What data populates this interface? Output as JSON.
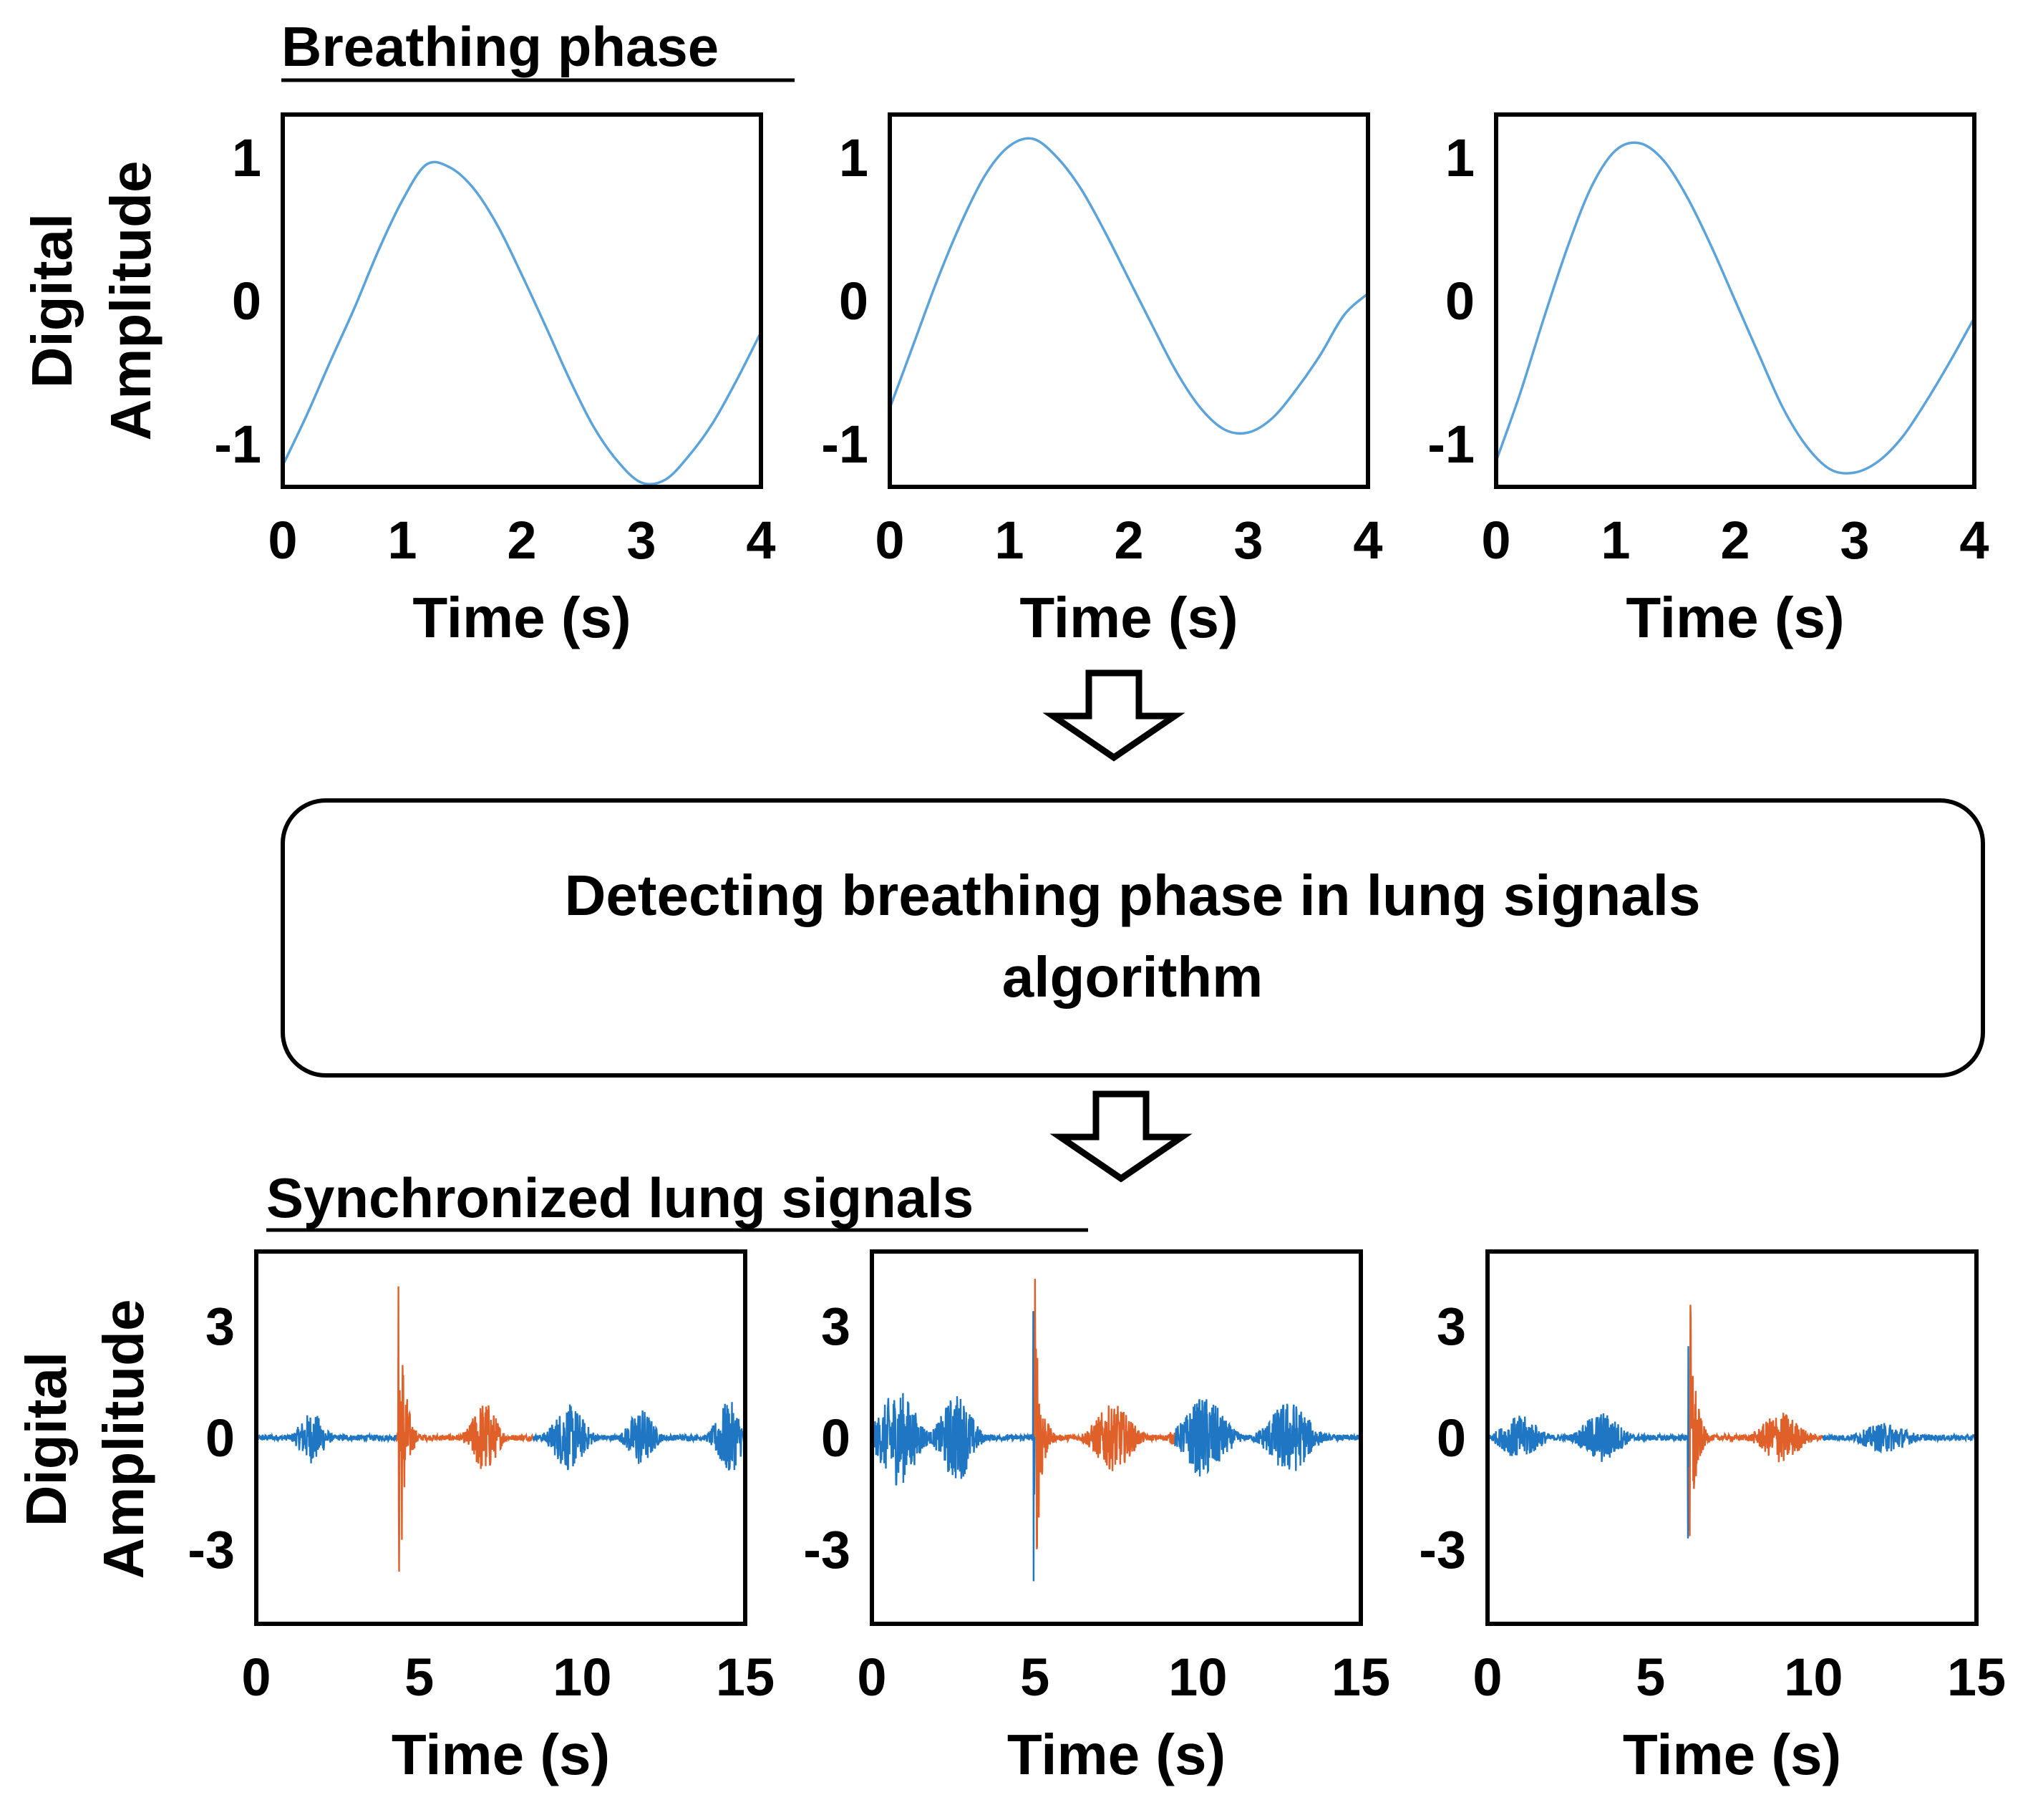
{
  "breathing_section": {
    "title": "Breathing phase"
  },
  "sync_section": {
    "title": "Synchronized lung signals"
  },
  "process_box": {
    "line1": "Detecting breathing phase in lung signals",
    "line2": "algorithm"
  },
  "y_axis_label": {
    "line1": "Digital",
    "line2": "Amplitude"
  },
  "x_axis_label": "Time (s)",
  "colors": {
    "breathing_line": "#5ba3d9",
    "lung_blue": "#1f77c4",
    "lung_orange": "#e0602a",
    "frame": "#000000"
  },
  "chart_data": [
    {
      "type": "line",
      "panel": "breathing-1",
      "ylim": [
        -1.3,
        1.3
      ],
      "xlim": [
        0,
        4
      ],
      "xticks": [
        "0",
        "1",
        "2",
        "3",
        "4"
      ],
      "yticks": [
        "1",
        "0",
        "-1"
      ],
      "x": [
        0,
        0.2,
        0.4,
        0.6,
        0.8,
        1.0,
        1.2,
        1.4,
        1.6,
        1.8,
        2.0,
        2.2,
        2.4,
        2.6,
        2.8,
        3.0,
        3.2,
        3.4,
        3.6,
        3.8,
        4.0
      ],
      "y": [
        -1.15,
        -0.8,
        -0.42,
        -0.05,
        0.35,
        0.7,
        0.95,
        0.93,
        0.78,
        0.52,
        0.18,
        -0.18,
        -0.55,
        -0.88,
        -1.12,
        -1.27,
        -1.25,
        -1.08,
        -0.85,
        -0.55,
        -0.22
      ]
    },
    {
      "type": "line",
      "panel": "breathing-2",
      "ylim": [
        -1.3,
        1.3
      ],
      "xlim": [
        0,
        4
      ],
      "xticks": [
        "0",
        "1",
        "2",
        "3",
        "4"
      ],
      "yticks": [
        "1",
        "0",
        "-1"
      ],
      "x": [
        0,
        0.2,
        0.4,
        0.6,
        0.8,
        1.0,
        1.2,
        1.4,
        1.6,
        1.8,
        2.0,
        2.2,
        2.4,
        2.6,
        2.8,
        3.0,
        3.2,
        3.4,
        3.6,
        3.8,
        4.0
      ],
      "y": [
        -0.75,
        -0.3,
        0.15,
        0.55,
        0.88,
        1.08,
        1.13,
        1.0,
        0.78,
        0.48,
        0.15,
        -0.18,
        -0.5,
        -0.75,
        -0.9,
        -0.92,
        -0.82,
        -0.62,
        -0.38,
        -0.1,
        0.05
      ]
    },
    {
      "type": "line",
      "panel": "breathing-3",
      "ylim": [
        -1.3,
        1.3
      ],
      "xlim": [
        0,
        4
      ],
      "xticks": [
        "0",
        "1",
        "2",
        "3",
        "4"
      ],
      "yticks": [
        "1",
        "0",
        "-1"
      ],
      "x": [
        0,
        0.2,
        0.4,
        0.6,
        0.8,
        1.0,
        1.2,
        1.4,
        1.6,
        1.8,
        2.0,
        2.2,
        2.4,
        2.6,
        2.8,
        3.0,
        3.2,
        3.4,
        3.6,
        3.8,
        4.0
      ],
      "y": [
        -1.12,
        -0.65,
        -0.12,
        0.38,
        0.8,
        1.05,
        1.1,
        0.98,
        0.72,
        0.38,
        0.0,
        -0.38,
        -0.75,
        -1.02,
        -1.18,
        -1.2,
        -1.12,
        -0.95,
        -0.7,
        -0.42,
        -0.12
      ]
    },
    {
      "type": "line",
      "panel": "lung-1",
      "ylim": [
        -5,
        5
      ],
      "xlim": [
        0,
        15
      ],
      "xticks": [
        "0",
        "5",
        "10",
        "15"
      ],
      "yticks": [
        "3",
        "0",
        "-3"
      ],
      "highlight": [
        4.3,
        8.5
      ],
      "bursts": [
        {
          "t": 1.7,
          "w": 0.8,
          "a": 0.7
        },
        {
          "t": 4.4,
          "w": 0.5,
          "a": 4.4
        },
        {
          "t": 7.0,
          "w": 0.8,
          "a": 1.0
        },
        {
          "t": 9.6,
          "w": 1.0,
          "a": 0.9
        },
        {
          "t": 11.8,
          "w": 0.8,
          "a": 0.8
        },
        {
          "t": 14.5,
          "w": 0.8,
          "a": 1.0
        }
      ]
    },
    {
      "type": "line",
      "panel": "lung-2",
      "ylim": [
        -5,
        5
      ],
      "xlim": [
        0,
        15
      ],
      "xticks": [
        "0",
        "5",
        "10",
        "15"
      ],
      "yticks": [
        "3",
        "0",
        "-3"
      ],
      "highlight": [
        5.0,
        9.3
      ],
      "bursts": [
        {
          "t": 0.8,
          "w": 1.2,
          "a": 1.3
        },
        {
          "t": 2.6,
          "w": 1.0,
          "a": 1.2
        },
        {
          "t": 5.0,
          "w": 0.5,
          "a": 4.6
        },
        {
          "t": 7.4,
          "w": 1.2,
          "a": 0.9
        },
        {
          "t": 10.2,
          "w": 1.3,
          "a": 1.1
        },
        {
          "t": 12.8,
          "w": 1.3,
          "a": 1.0
        }
      ]
    },
    {
      "type": "line",
      "panel": "lung-3",
      "ylim": [
        -5,
        5
      ],
      "xlim": [
        0,
        15
      ],
      "xticks": [
        "0",
        "5",
        "10",
        "15"
      ],
      "yticks": [
        "3",
        "0",
        "-3"
      ],
      "highlight": [
        6.2,
        10.3
      ],
      "bursts": [
        {
          "t": 1.0,
          "w": 1.2,
          "a": 0.6
        },
        {
          "t": 3.5,
          "w": 1.2,
          "a": 0.7
        },
        {
          "t": 6.2,
          "w": 0.5,
          "a": 4.4
        },
        {
          "t": 9.0,
          "w": 1.2,
          "a": 0.7
        },
        {
          "t": 12.2,
          "w": 1.5,
          "a": 0.4
        }
      ]
    }
  ]
}
